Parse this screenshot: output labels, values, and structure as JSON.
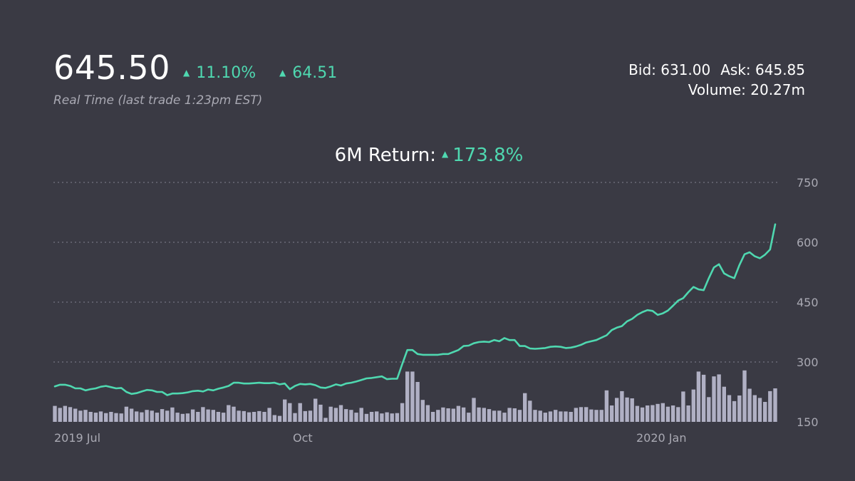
{
  "header": {
    "price": "645.50",
    "change_pct": "11.10%",
    "change_abs": "64.51",
    "up_glyph": "▲",
    "subtitle": "Real Time (last trade 1:23pm EST)",
    "bid_label": "Bid: 631.00",
    "ask_label": "Ask: 645.85",
    "volume_label": "Volume: 20.27m"
  },
  "return_line": {
    "label": "6M Return:",
    "value": "173.8%"
  },
  "colors": {
    "background": "#3a3a44",
    "line": "#4fd8b0",
    "volume_bar": "#b0b0c4",
    "grid": "#6a6a76",
    "axis_text": "#a9a9b3"
  },
  "chart_data": {
    "type": "line",
    "title": "",
    "x_tick_labels": [
      "2019 Jul",
      "Oct",
      "2020 Jan"
    ],
    "y_tick_labels": [
      "750",
      "600",
      "450",
      "300",
      "150"
    ],
    "ylim": [
      150,
      750
    ],
    "grid": "horizontal dotted",
    "series": [
      {
        "kind": "line",
        "values": [
          239,
          243,
          243,
          240,
          234,
          234,
          229,
          232,
          234,
          238,
          240,
          237,
          234,
          235,
          225,
          220,
          222,
          226,
          230,
          229,
          225,
          225,
          217,
          221,
          221,
          222,
          224,
          227,
          228,
          226,
          231,
          229,
          233,
          236,
          240,
          248,
          248,
          246,
          246,
          247,
          248,
          247,
          247,
          248,
          244,
          246,
          232,
          240,
          245,
          244,
          245,
          242,
          236,
          235,
          239,
          244,
          241,
          246,
          248,
          251,
          255,
          259,
          260,
          262,
          264,
          257,
          258,
          258,
          295,
          330,
          330,
          320,
          318,
          318,
          318,
          318,
          320,
          320,
          325,
          330,
          340,
          341,
          347,
          350,
          351,
          350,
          355,
          352,
          360,
          355,
          355,
          340,
          340,
          334,
          333,
          334,
          335,
          338,
          339,
          338,
          335,
          336,
          339,
          343,
          349,
          352,
          355,
          361,
          367,
          380,
          386,
          390,
          402,
          408,
          418,
          425,
          430,
          428,
          418,
          422,
          429,
          441,
          454,
          460,
          475,
          488,
          482,
          480,
          510,
          537,
          545,
          522,
          515,
          510,
          543,
          570,
          575,
          565,
          560,
          569,
          582,
          645
        ]
      },
      {
        "kind": "volume",
        "values": [
          190,
          185,
          190,
          187,
          183,
          178,
          180,
          175,
          173,
          176,
          172,
          175,
          172,
          171,
          188,
          183,
          176,
          174,
          180,
          178,
          173,
          182,
          178,
          186,
          173,
          170,
          171,
          181,
          175,
          187,
          181,
          180,
          175,
          173,
          192,
          188,
          178,
          177,
          174,
          175,
          177,
          175,
          185,
          167,
          165,
          206,
          197,
          172,
          197,
          177,
          178,
          208,
          193,
          160,
          188,
          185,
          192,
          182,
          180,
          173,
          185,
          170,
          175,
          176,
          171,
          174,
          171,
          172,
          197,
          276,
          276,
          250,
          205,
          192,
          175,
          180,
          186,
          184,
          183,
          190,
          186,
          173,
          210,
          186,
          185,
          182,
          178,
          178,
          173,
          185,
          184,
          180,
          222,
          203,
          180,
          178,
          173,
          176,
          180,
          176,
          176,
          175,
          185,
          187,
          187,
          181,
          180,
          180,
          229,
          191,
          210,
          227,
          211,
          209,
          190,
          186,
          191,
          192,
          195,
          197,
          188,
          191,
          187,
          226,
          191,
          231,
          276,
          268,
          212,
          264,
          269,
          238,
          217,
          202,
          216,
          279,
          233,
          217,
          210,
          200,
          227,
          234
        ]
      }
    ]
  }
}
